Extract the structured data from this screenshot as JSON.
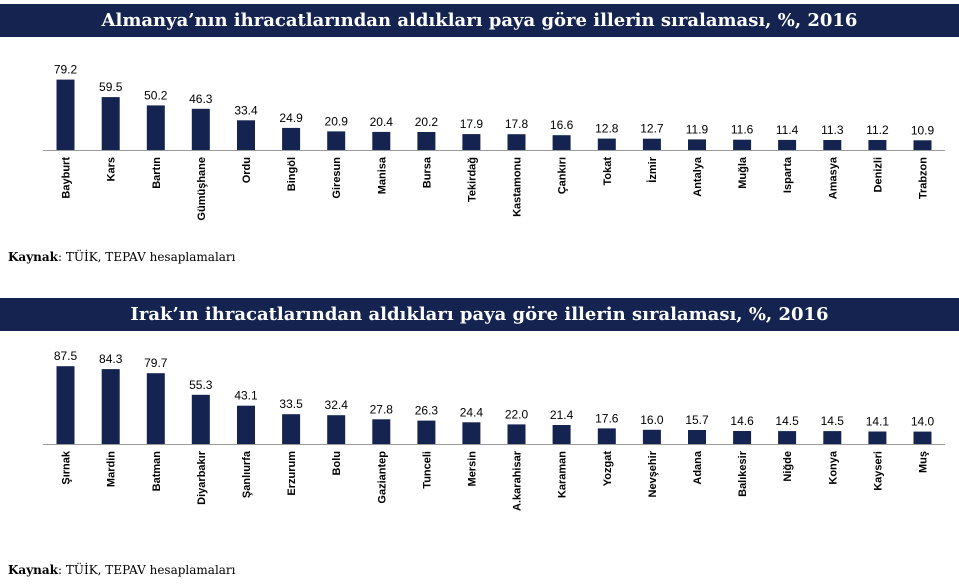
{
  "chart_data": [
    {
      "type": "bar",
      "title": "Almanya’nın ihracatlarından aldıkları paya göre illerin sıralaması, %, 2016",
      "categories": [
        "Bayburt",
        "Kars",
        "Bartın",
        "Gümüşhane",
        "Ordu",
        "Bingöl",
        "Giresun",
        "Manisa",
        "Bursa",
        "Tekirdağ",
        "Kastamonu",
        "Çankırı",
        "Tokat",
        "İzmir",
        "Antalya",
        "Muğla",
        "Isparta",
        "Amasya",
        "Denizli",
        "Trabzon"
      ],
      "values": [
        79.2,
        59.5,
        50.2,
        46.3,
        33.4,
        24.9,
        20.9,
        20.4,
        20.2,
        17.9,
        17.8,
        16.6,
        12.8,
        12.7,
        11.9,
        11.6,
        11.4,
        11.3,
        11.2,
        10.9
      ],
      "value_labels": [
        "79.2",
        "59.5",
        "50.2",
        "46.3",
        "33.4",
        "24.9",
        "20.9",
        "20.4",
        "20.2",
        "17.9",
        "17.8",
        "16.6",
        "12.8",
        "12.7",
        "11.9",
        "11.6",
        "11.4",
        "11.3",
        "11.2",
        "10.9"
      ],
      "ylim": [
        0,
        90
      ],
      "bar_color": "#14234f",
      "grid": false,
      "source_label": "Kaynak",
      "source_text": ": TÜİK, TEPAV hesaplamaları"
    },
    {
      "type": "bar",
      "title": "Irak’ın ihracatlarından aldıkları paya göre illerin sıralaması, %, 2016",
      "categories": [
        "Şırnak",
        "Mardin",
        "Batman",
        "Diyarbakır",
        "Şanlıurfa",
        "Erzurum",
        "Bolu",
        "Gaziantep",
        "Tunceli",
        "Mersin",
        "A.karahisar",
        "Karaman",
        "Yozgat",
        "Nevşehir",
        "Adana",
        "Balıkesir",
        "Niğde",
        "Konya",
        "Kayseri",
        "Muş"
      ],
      "values": [
        87.5,
        84.3,
        79.7,
        55.3,
        43.1,
        33.5,
        32.4,
        27.8,
        26.3,
        24.4,
        22.0,
        21.4,
        17.6,
        16.0,
        15.7,
        14.6,
        14.5,
        14.5,
        14.1,
        14.0
      ],
      "value_labels": [
        "87.5",
        "84.3",
        "79.7",
        "55.3",
        "43.1",
        "33.5",
        "32.4",
        "27.8",
        "26.3",
        "24.4",
        "22.0",
        "21.4",
        "17.6",
        "16.0",
        "15.7",
        "14.6",
        "14.5",
        "14.5",
        "14.1",
        "14.0"
      ],
      "ylim": [
        0,
        90
      ],
      "bar_color": "#14234f",
      "grid": false,
      "source_label": "Kaynak",
      "source_text": ": TÜİK, TEPAV hesaplamaları"
    }
  ]
}
